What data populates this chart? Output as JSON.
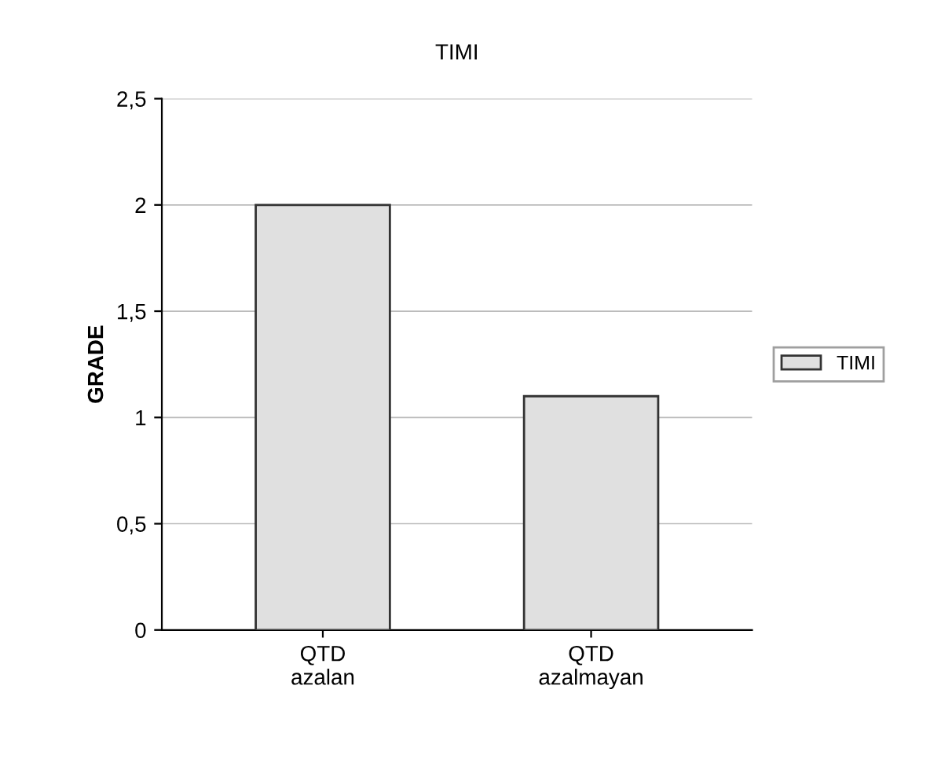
{
  "chart_data": {
    "type": "bar",
    "title": "TIMI",
    "ylabel": "GRADE",
    "categories": [
      "QTD\nazalan",
      "QTD\nazalmayan"
    ],
    "series": [
      {
        "name": "TIMI",
        "color": "#e0e0e0",
        "values": [
          2,
          1.1
        ]
      }
    ],
    "ylim": [
      0,
      2.5
    ],
    "yticks": [
      0,
      {
        "value": 0.5,
        "label": "0,5"
      },
      1,
      {
        "value": 1.5,
        "label": "1,5"
      },
      2,
      {
        "value": 2.5,
        "label": "2,5"
      }
    ],
    "grid": "y",
    "legend": "right"
  }
}
